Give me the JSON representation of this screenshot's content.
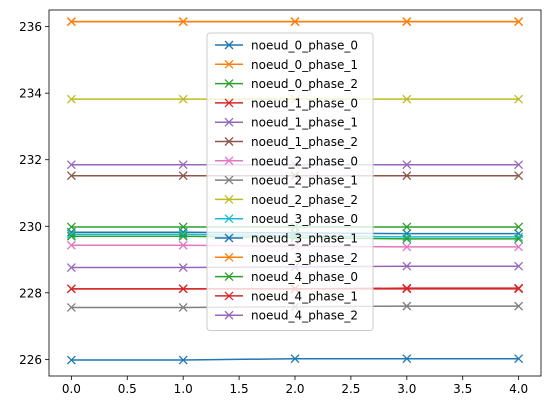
{
  "chart_data": {
    "type": "line",
    "title": "",
    "xlabel": "",
    "ylabel": "",
    "x": [
      0,
      1,
      2,
      3,
      4
    ],
    "xlim": [
      -0.2,
      4.2
    ],
    "ylim": [
      225.5,
      236.5
    ],
    "xticks": [
      "0.0",
      "0.5",
      "1.0",
      "1.5",
      "2.0",
      "2.5",
      "3.0",
      "3.5",
      "4.0"
    ],
    "yticks": [
      "226",
      "228",
      "230",
      "232",
      "234",
      "236"
    ],
    "grid": false,
    "legend": "top-center",
    "marker": "x",
    "series": [
      {
        "name": "noeud_0_phase_0",
        "color": "#1f77b4",
        "values": [
          229.82,
          229.82,
          229.8,
          229.78,
          229.78
        ]
      },
      {
        "name": "noeud_0_phase_1",
        "color": "#ff7f0e",
        "values": [
          236.15,
          236.15,
          236.15,
          236.15,
          236.15
        ]
      },
      {
        "name": "noeud_0_phase_2",
        "color": "#2ca02c",
        "values": [
          229.98,
          229.98,
          229.98,
          229.98,
          229.98
        ]
      },
      {
        "name": "noeud_1_phase_0",
        "color": "#d62728",
        "values": [
          228.12,
          228.12,
          228.12,
          228.12,
          228.12
        ]
      },
      {
        "name": "noeud_1_phase_1",
        "color": "#9467bd",
        "values": [
          231.85,
          231.85,
          231.85,
          231.85,
          231.85
        ]
      },
      {
        "name": "noeud_1_phase_2",
        "color": "#8c564b",
        "values": [
          231.52,
          231.52,
          231.52,
          231.52,
          231.52
        ]
      },
      {
        "name": "noeud_2_phase_0",
        "color": "#e377c2",
        "values": [
          229.43,
          229.43,
          229.4,
          229.38,
          229.38
        ]
      },
      {
        "name": "noeud_2_phase_1",
        "color": "#7f7f7f",
        "values": [
          227.56,
          227.56,
          227.58,
          227.6,
          227.6
        ]
      },
      {
        "name": "noeud_2_phase_2",
        "color": "#bcbd22",
        "values": [
          233.82,
          233.82,
          233.82,
          233.82,
          233.82
        ]
      },
      {
        "name": "noeud_3_phase_0",
        "color": "#17becf",
        "values": [
          229.76,
          229.76,
          229.72,
          229.68,
          229.68
        ]
      },
      {
        "name": "noeud_3_phase_1",
        "color": "#1f77b4",
        "values": [
          225.98,
          225.98,
          226.02,
          226.02,
          226.02
        ]
      },
      {
        "name": "noeud_3_phase_2",
        "color": "#ff7f0e",
        "values": [
          236.15,
          236.15,
          236.15,
          236.15,
          236.15
        ]
      },
      {
        "name": "noeud_4_phase_0",
        "color": "#2ca02c",
        "values": [
          229.7,
          229.7,
          229.66,
          229.62,
          229.62
        ]
      },
      {
        "name": "noeud_4_phase_1",
        "color": "#d62728",
        "values": [
          228.12,
          228.12,
          228.12,
          228.14,
          228.14
        ]
      },
      {
        "name": "noeud_4_phase_2",
        "color": "#9467bd",
        "values": [
          228.76,
          228.76,
          228.78,
          228.8,
          228.8
        ]
      }
    ]
  }
}
